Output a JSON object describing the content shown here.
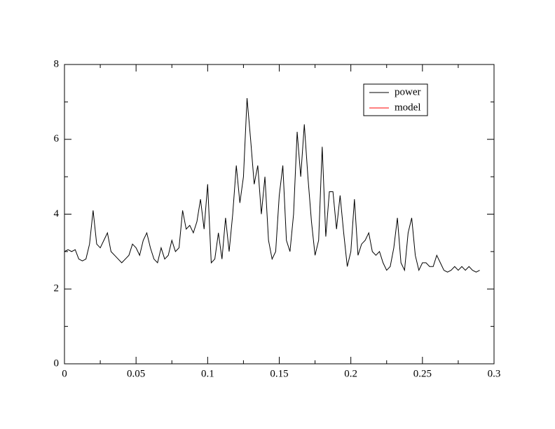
{
  "chart_data": {
    "type": "line",
    "x": [
      0,
      0.0025,
      0.005,
      0.0075,
      0.01,
      0.0125,
      0.015,
      0.0175,
      0.02,
      0.0225,
      0.025,
      0.0275,
      0.03,
      0.0325,
      0.035,
      0.0375,
      0.04,
      0.0425,
      0.045,
      0.0475,
      0.05,
      0.0525,
      0.055,
      0.0575,
      0.06,
      0.0625,
      0.065,
      0.0675,
      0.07,
      0.0725,
      0.075,
      0.0775,
      0.08,
      0.0825,
      0.085,
      0.0875,
      0.09,
      0.0925,
      0.095,
      0.0975,
      0.1,
      0.1025,
      0.105,
      0.1075,
      0.11,
      0.1125,
      0.115,
      0.1175,
      0.12,
      0.1225,
      0.125,
      0.1275,
      0.13,
      0.1325,
      0.135,
      0.1375,
      0.14,
      0.1425,
      0.145,
      0.1475,
      0.15,
      0.1525,
      0.155,
      0.1575,
      0.16,
      0.1625,
      0.165,
      0.1675,
      0.17,
      0.1725,
      0.175,
      0.1775,
      0.18,
      0.1825,
      0.185,
      0.1875,
      0.19,
      0.1925,
      0.195,
      0.1975,
      0.2,
      0.2025,
      0.205,
      0.2075,
      0.21,
      0.2125,
      0.215,
      0.2175,
      0.22,
      0.2225,
      0.225,
      0.2275,
      0.23,
      0.2325,
      0.235,
      0.2375,
      0.24,
      0.2425,
      0.245,
      0.2475,
      0.25,
      0.2525,
      0.255,
      0.2575,
      0.26,
      0.2625,
      0.265,
      0.2675,
      0.27,
      0.2725,
      0.275,
      0.2775,
      0.28,
      0.2825,
      0.285,
      0.2875,
      0.29
    ],
    "series": [
      {
        "name": "power",
        "color": "#000000",
        "values": [
          3.0,
          3.05,
          3.0,
          3.05,
          2.8,
          2.75,
          2.8,
          3.2,
          4.1,
          3.2,
          3.1,
          3.3,
          3.5,
          3.0,
          2.9,
          2.8,
          2.7,
          2.8,
          2.9,
          3.2,
          3.1,
          2.9,
          3.3,
          3.5,
          3.1,
          2.8,
          2.7,
          3.1,
          2.8,
          2.9,
          3.3,
          3.0,
          3.1,
          4.1,
          3.6,
          3.7,
          3.5,
          3.8,
          4.4,
          3.6,
          4.8,
          2.7,
          2.8,
          3.5,
          2.8,
          3.9,
          3.0,
          4.0,
          5.3,
          4.3,
          5.0,
          7.1,
          6.0,
          4.8,
          5.3,
          4.0,
          5.0,
          3.3,
          2.8,
          3.0,
          4.5,
          5.3,
          3.3,
          3.0,
          4.0,
          6.2,
          5.0,
          6.4,
          5.0,
          3.8,
          2.9,
          3.3,
          5.8,
          3.4,
          4.6,
          4.6,
          3.6,
          4.5,
          3.5,
          2.6,
          3.0,
          4.4,
          2.9,
          3.2,
          3.3,
          3.5,
          3.0,
          2.9,
          3.0,
          2.7,
          2.5,
          2.6,
          3.1,
          3.9,
          2.7,
          2.5,
          3.5,
          3.9,
          2.9,
          2.5,
          2.7,
          2.7,
          2.6,
          2.6,
          2.9,
          2.7,
          2.5,
          2.45,
          2.5,
          2.6,
          2.5,
          2.6,
          2.5,
          2.6,
          2.5,
          2.45,
          2.5
        ]
      },
      {
        "name": "model",
        "color": "#ff0000",
        "values": [
          null,
          null,
          null,
          null,
          null,
          null,
          null,
          null,
          null,
          null,
          null,
          null,
          null,
          null,
          null,
          null,
          null,
          null,
          null,
          null,
          null,
          null,
          null,
          null,
          null,
          null,
          null,
          null,
          null,
          null,
          null,
          null,
          null,
          null,
          null,
          null,
          null,
          null,
          null,
          null,
          null,
          null,
          null,
          null,
          null,
          null,
          null,
          null,
          null,
          null,
          null,
          null,
          null,
          null,
          null,
          null,
          null,
          null,
          null,
          null,
          null,
          null,
          null,
          null,
          null,
          null,
          null,
          null,
          null,
          null,
          null,
          null,
          null,
          null,
          null,
          null,
          null,
          null,
          null,
          null,
          null,
          null,
          null,
          null,
          null,
          null,
          null,
          null,
          null,
          null,
          null,
          null,
          null,
          null,
          null,
          null,
          null,
          null,
          null,
          null,
          null,
          null,
          null,
          null,
          null,
          null,
          null,
          null,
          null,
          null,
          null,
          null,
          null,
          null,
          null,
          null,
          null
        ]
      }
    ],
    "xlim": [
      0,
      0.3
    ],
    "xticks": [
      0,
      0.05,
      0.1,
      0.15,
      0.2,
      0.25,
      0.3
    ],
    "xminorticks": [
      0.025,
      0.075,
      0.125,
      0.175,
      0.225,
      0.275
    ],
    "ylim": [
      0,
      8
    ],
    "yticks": [
      0,
      2,
      4,
      6,
      8
    ],
    "yminorticks": [
      1,
      3,
      5,
      7
    ],
    "legend": "upper right"
  }
}
